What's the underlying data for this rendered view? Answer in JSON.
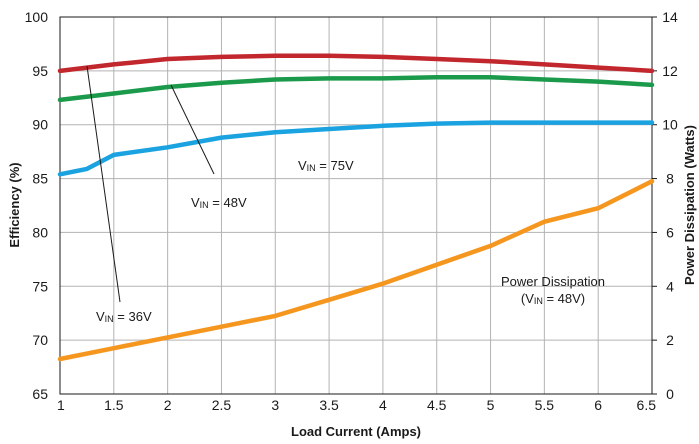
{
  "chart_data": {
    "type": "line",
    "xlabel": "Load Current (Amps)",
    "ylabel": "Efficiency (%)",
    "y2label": "Power Dissipation (Watts)",
    "xlim": [
      1,
      6.5
    ],
    "ylim": [
      65,
      100
    ],
    "y2lim": [
      0,
      14
    ],
    "x_ticks": [
      "1",
      "1.5",
      "2",
      "2.5",
      "3",
      "3.5",
      "4",
      "4.5",
      "5",
      "5.5",
      "6",
      "6.5"
    ],
    "y_ticks": [
      "65",
      "70",
      "75",
      "80",
      "85",
      "90",
      "95",
      "100"
    ],
    "y2_ticks": [
      "0",
      "2",
      "4",
      "6",
      "8",
      "10",
      "12",
      "14"
    ],
    "grid": true,
    "series": [
      {
        "name": "VIN = 36V",
        "axis": "left",
        "color": "#c1272d",
        "x": [
          1,
          1.5,
          2,
          2.5,
          3,
          3.5,
          4,
          4.5,
          5,
          5.5,
          6,
          6.5
        ],
        "values": [
          95,
          95.6,
          96.1,
          96.3,
          96.4,
          96.4,
          96.3,
          96.1,
          95.9,
          95.6,
          95.3,
          95.0
        ]
      },
      {
        "name": "VIN = 48V",
        "axis": "left",
        "color": "#1a9a4a",
        "x": [
          1,
          1.5,
          2,
          2.5,
          3,
          3.5,
          4,
          4.5,
          5,
          5.5,
          6,
          6.5
        ],
        "values": [
          92.3,
          92.9,
          93.5,
          93.9,
          94.2,
          94.3,
          94.3,
          94.4,
          94.4,
          94.2,
          94.0,
          93.7
        ]
      },
      {
        "name": "VIN = 75V",
        "axis": "left",
        "color": "#1aa3e0",
        "x": [
          1,
          1.25,
          1.5,
          2,
          2.5,
          3,
          3.5,
          4,
          4.5,
          5,
          5.5,
          6,
          6.5
        ],
        "values": [
          85.4,
          85.9,
          87.2,
          87.9,
          88.8,
          89.3,
          89.6,
          89.9,
          90.1,
          90.2,
          90.2,
          90.2,
          90.2
        ]
      },
      {
        "name": "Power Dissipation (VIN = 48V)",
        "axis": "right",
        "color": "#f5961e",
        "x": [
          1,
          1.5,
          2,
          2.5,
          3,
          3.5,
          4,
          4.5,
          5,
          5.5,
          6,
          6.5
        ],
        "values": [
          1.3,
          1.7,
          2.1,
          2.5,
          2.9,
          3.5,
          4.1,
          4.8,
          5.5,
          6.4,
          6.9,
          7.9
        ]
      }
    ],
    "annotations": [
      {
        "prefix": "V",
        "sub": "IN",
        "suffix": " = 75V"
      },
      {
        "prefix": "V",
        "sub": "IN",
        "suffix": " = 48V"
      },
      {
        "prefix": "V",
        "sub": "IN",
        "suffix": " = 36V"
      },
      {
        "line1": "Power Dissipation",
        "prefix": "(V",
        "sub": "IN",
        "suffix": " = 48V)"
      }
    ]
  }
}
